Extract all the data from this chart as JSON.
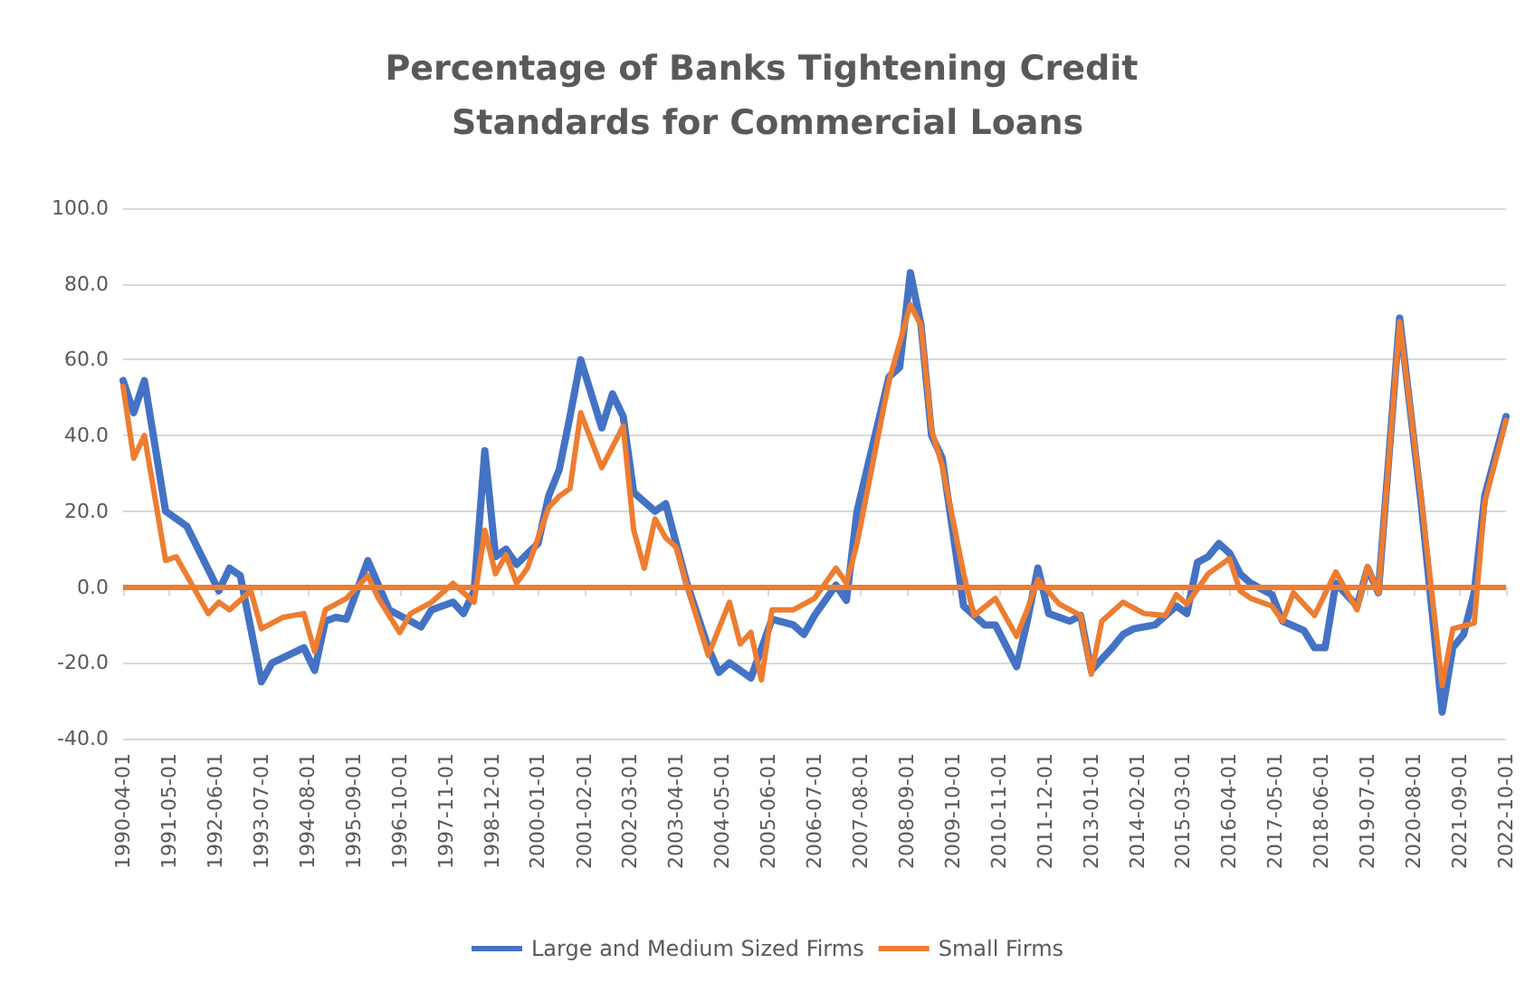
{
  "chart_data": {
    "type": "line",
    "title": "Percentage of Banks Tightening Credit Standards for Commercial Loans",
    "xlim": [
      "1990-04-01",
      "2022-10-01"
    ],
    "xticks": [
      "1990-04-01",
      "1991-05-01",
      "1992-06-01",
      "1993-07-01",
      "1994-08-01",
      "1995-09-01",
      "1996-10-01",
      "1997-11-01",
      "1998-12-01",
      "2000-01-01",
      "2001-02-01",
      "2002-03-01",
      "2003-04-01",
      "2004-05-01",
      "2005-06-01",
      "2006-07-01",
      "2007-08-01",
      "2008-09-01",
      "2009-10-01",
      "2010-11-01",
      "2011-12-01",
      "2013-01-01",
      "2014-02-01",
      "2015-03-01",
      "2016-04-01",
      "2017-05-01",
      "2018-06-01",
      "2019-07-01",
      "2020-08-01",
      "2021-09-01",
      "2022-10-01"
    ],
    "ylim": [
      -40,
      100
    ],
    "yticks": [
      {
        "value": -40,
        "label": "-40.0"
      },
      {
        "value": -20,
        "label": "-20.0"
      },
      {
        "value": 0,
        "label": "0.0"
      },
      {
        "value": 20,
        "label": "20.0"
      },
      {
        "value": 40,
        "label": "40.0"
      },
      {
        "value": 60,
        "label": "60.0"
      },
      {
        "value": 80,
        "label": "80.0"
      },
      {
        "value": 100,
        "label": "100.0"
      }
    ],
    "grid": "y",
    "legend": "bottom",
    "marker": "none",
    "line_style": "solid",
    "ref_lines": [
      {
        "axis": "y",
        "value": 0,
        "color": "#ed7d31"
      }
    ],
    "series": [
      {
        "name": "Large and Medium Sized Firms",
        "color": "#4472c4",
        "x": [
          "1990-04",
          "1990-07",
          "1990-10",
          "1991-04",
          "1991-10",
          "1992-07",
          "1992-10",
          "1993-01",
          "1993-07",
          "1993-10",
          "1994-07",
          "1994-10",
          "1995-01",
          "1995-04",
          "1995-07",
          "1996-01",
          "1996-07",
          "1997-01",
          "1997-04",
          "1997-07",
          "1998-01",
          "1998-04",
          "1998-07",
          "1998-10",
          "1999-01",
          "1999-04",
          "1999-07",
          "2000-01",
          "2000-04",
          "2000-07",
          "2000-10",
          "2001-01",
          "2001-07",
          "2001-10",
          "2002-01",
          "2002-04",
          "2002-10",
          "2003-01",
          "2003-04",
          "2003-07",
          "2004-01",
          "2004-04",
          "2004-07",
          "2005-01",
          "2005-07",
          "2006-01",
          "2006-04",
          "2006-07",
          "2007-01",
          "2007-04",
          "2007-07",
          "2008-04",
          "2008-07",
          "2008-10",
          "2009-01",
          "2009-04",
          "2009-07",
          "2010-01",
          "2010-07",
          "2010-10",
          "2011-04",
          "2011-07",
          "2011-10",
          "2012-01",
          "2012-07",
          "2012-10",
          "2013-01",
          "2013-07",
          "2013-10",
          "2014-01",
          "2014-07",
          "2015-01",
          "2015-04",
          "2015-07",
          "2015-10",
          "2016-01",
          "2016-04",
          "2016-07",
          "2016-10",
          "2017-04",
          "2017-07",
          "2018-01",
          "2018-04",
          "2018-07",
          "2018-10",
          "2019-04",
          "2019-07",
          "2019-10",
          "2020-04",
          "2020-10",
          "2021-04",
          "2021-07",
          "2021-10",
          "2022-01",
          "2022-04",
          "2022-10"
        ],
        "values": [
          54.5,
          46,
          54.5,
          20,
          16,
          -1,
          5,
          3,
          -25,
          -20,
          -16,
          -22,
          -9,
          -8,
          -8.5,
          7,
          -6,
          -9,
          -10.5,
          -6,
          -4,
          -7,
          -1,
          36,
          8,
          10,
          6,
          11.5,
          24,
          31,
          45,
          60,
          42,
          51,
          45,
          25,
          20,
          22,
          11.5,
          1,
          -16,
          -22.5,
          -20,
          -24,
          -8.5,
          -10,
          -12.5,
          -7.5,
          0.5,
          -3.5,
          20,
          55.5,
          58,
          83,
          69,
          40,
          34,
          -5,
          -10,
          -10,
          -21,
          -9,
          5,
          -7,
          -9,
          -7.5,
          -22,
          -16,
          -12.5,
          -11,
          -10,
          -5,
          -7,
          6.5,
          8,
          11.5,
          9,
          3.5,
          1,
          -2,
          -9,
          -11.5,
          -16,
          -16,
          1,
          -5,
          5,
          -1.5,
          71,
          22.5,
          -33,
          -16,
          -12.5,
          -1.5,
          24,
          45
        ]
      },
      {
        "name": "Small Firms",
        "color": "#ed7d31",
        "x": [
          "1990-04",
          "1990-07",
          "1990-10",
          "1991-04",
          "1991-07",
          "1992-04",
          "1992-07",
          "1992-10",
          "1993-04",
          "1993-07",
          "1994-01",
          "1994-07",
          "1994-10",
          "1995-01",
          "1995-07",
          "1996-01",
          "1996-04",
          "1996-10",
          "1997-01",
          "1997-07",
          "1998-01",
          "1998-07",
          "1998-10",
          "1999-01",
          "1999-04",
          "1999-07",
          "1999-10",
          "2000-04",
          "2000-07",
          "2000-10",
          "2001-01",
          "2001-07",
          "2002-01",
          "2002-04",
          "2002-07",
          "2002-10",
          "2003-01",
          "2003-04",
          "2003-07",
          "2004-01",
          "2004-07",
          "2004-10",
          "2005-01",
          "2005-04",
          "2005-07",
          "2006-01",
          "2006-07",
          "2007-01",
          "2007-04",
          "2007-07",
          "2008-04",
          "2008-10",
          "2009-01",
          "2009-04",
          "2009-07",
          "2010-01",
          "2010-04",
          "2010-10",
          "2011-04",
          "2011-07",
          "2011-10",
          "2012-04",
          "2012-10",
          "2013-01",
          "2013-04",
          "2013-10",
          "2014-04",
          "2014-10",
          "2015-01",
          "2015-04",
          "2015-10",
          "2016-04",
          "2016-07",
          "2016-10",
          "2017-04",
          "2017-07",
          "2017-10",
          "2018-04",
          "2018-10",
          "2019-04",
          "2019-07",
          "2019-10",
          "2020-04",
          "2020-10",
          "2021-04",
          "2021-07",
          "2022-01",
          "2022-04",
          "2022-10"
        ],
        "values": [
          53,
          34,
          40,
          7,
          8,
          -7,
          -4,
          -6,
          -1,
          -11,
          -8,
          -7,
          -17,
          -6,
          -3,
          3,
          -3,
          -12,
          -7,
          -4,
          1,
          -4,
          15,
          3.5,
          8.5,
          1,
          5,
          21,
          24,
          26,
          46,
          31.5,
          42.5,
          15,
          5,
          18,
          13,
          10.5,
          0.5,
          -18,
          -4,
          -15,
          -12,
          -24.5,
          -6,
          -6,
          -3,
          5,
          1,
          11.5,
          54.5,
          74.5,
          69,
          41.5,
          32,
          3.5,
          -7.5,
          -3,
          -13,
          -6,
          2,
          -4.5,
          -7.5,
          -23,
          -9,
          -4,
          -7,
          -7.5,
          -2,
          -4.5,
          3.5,
          7.5,
          -1,
          -3,
          -5,
          -9,
          -1.5,
          -7.5,
          4,
          -6,
          5.5,
          -1.5,
          70,
          24,
          -26,
          -11,
          -9.5,
          22.5,
          44
        ]
      }
    ]
  }
}
